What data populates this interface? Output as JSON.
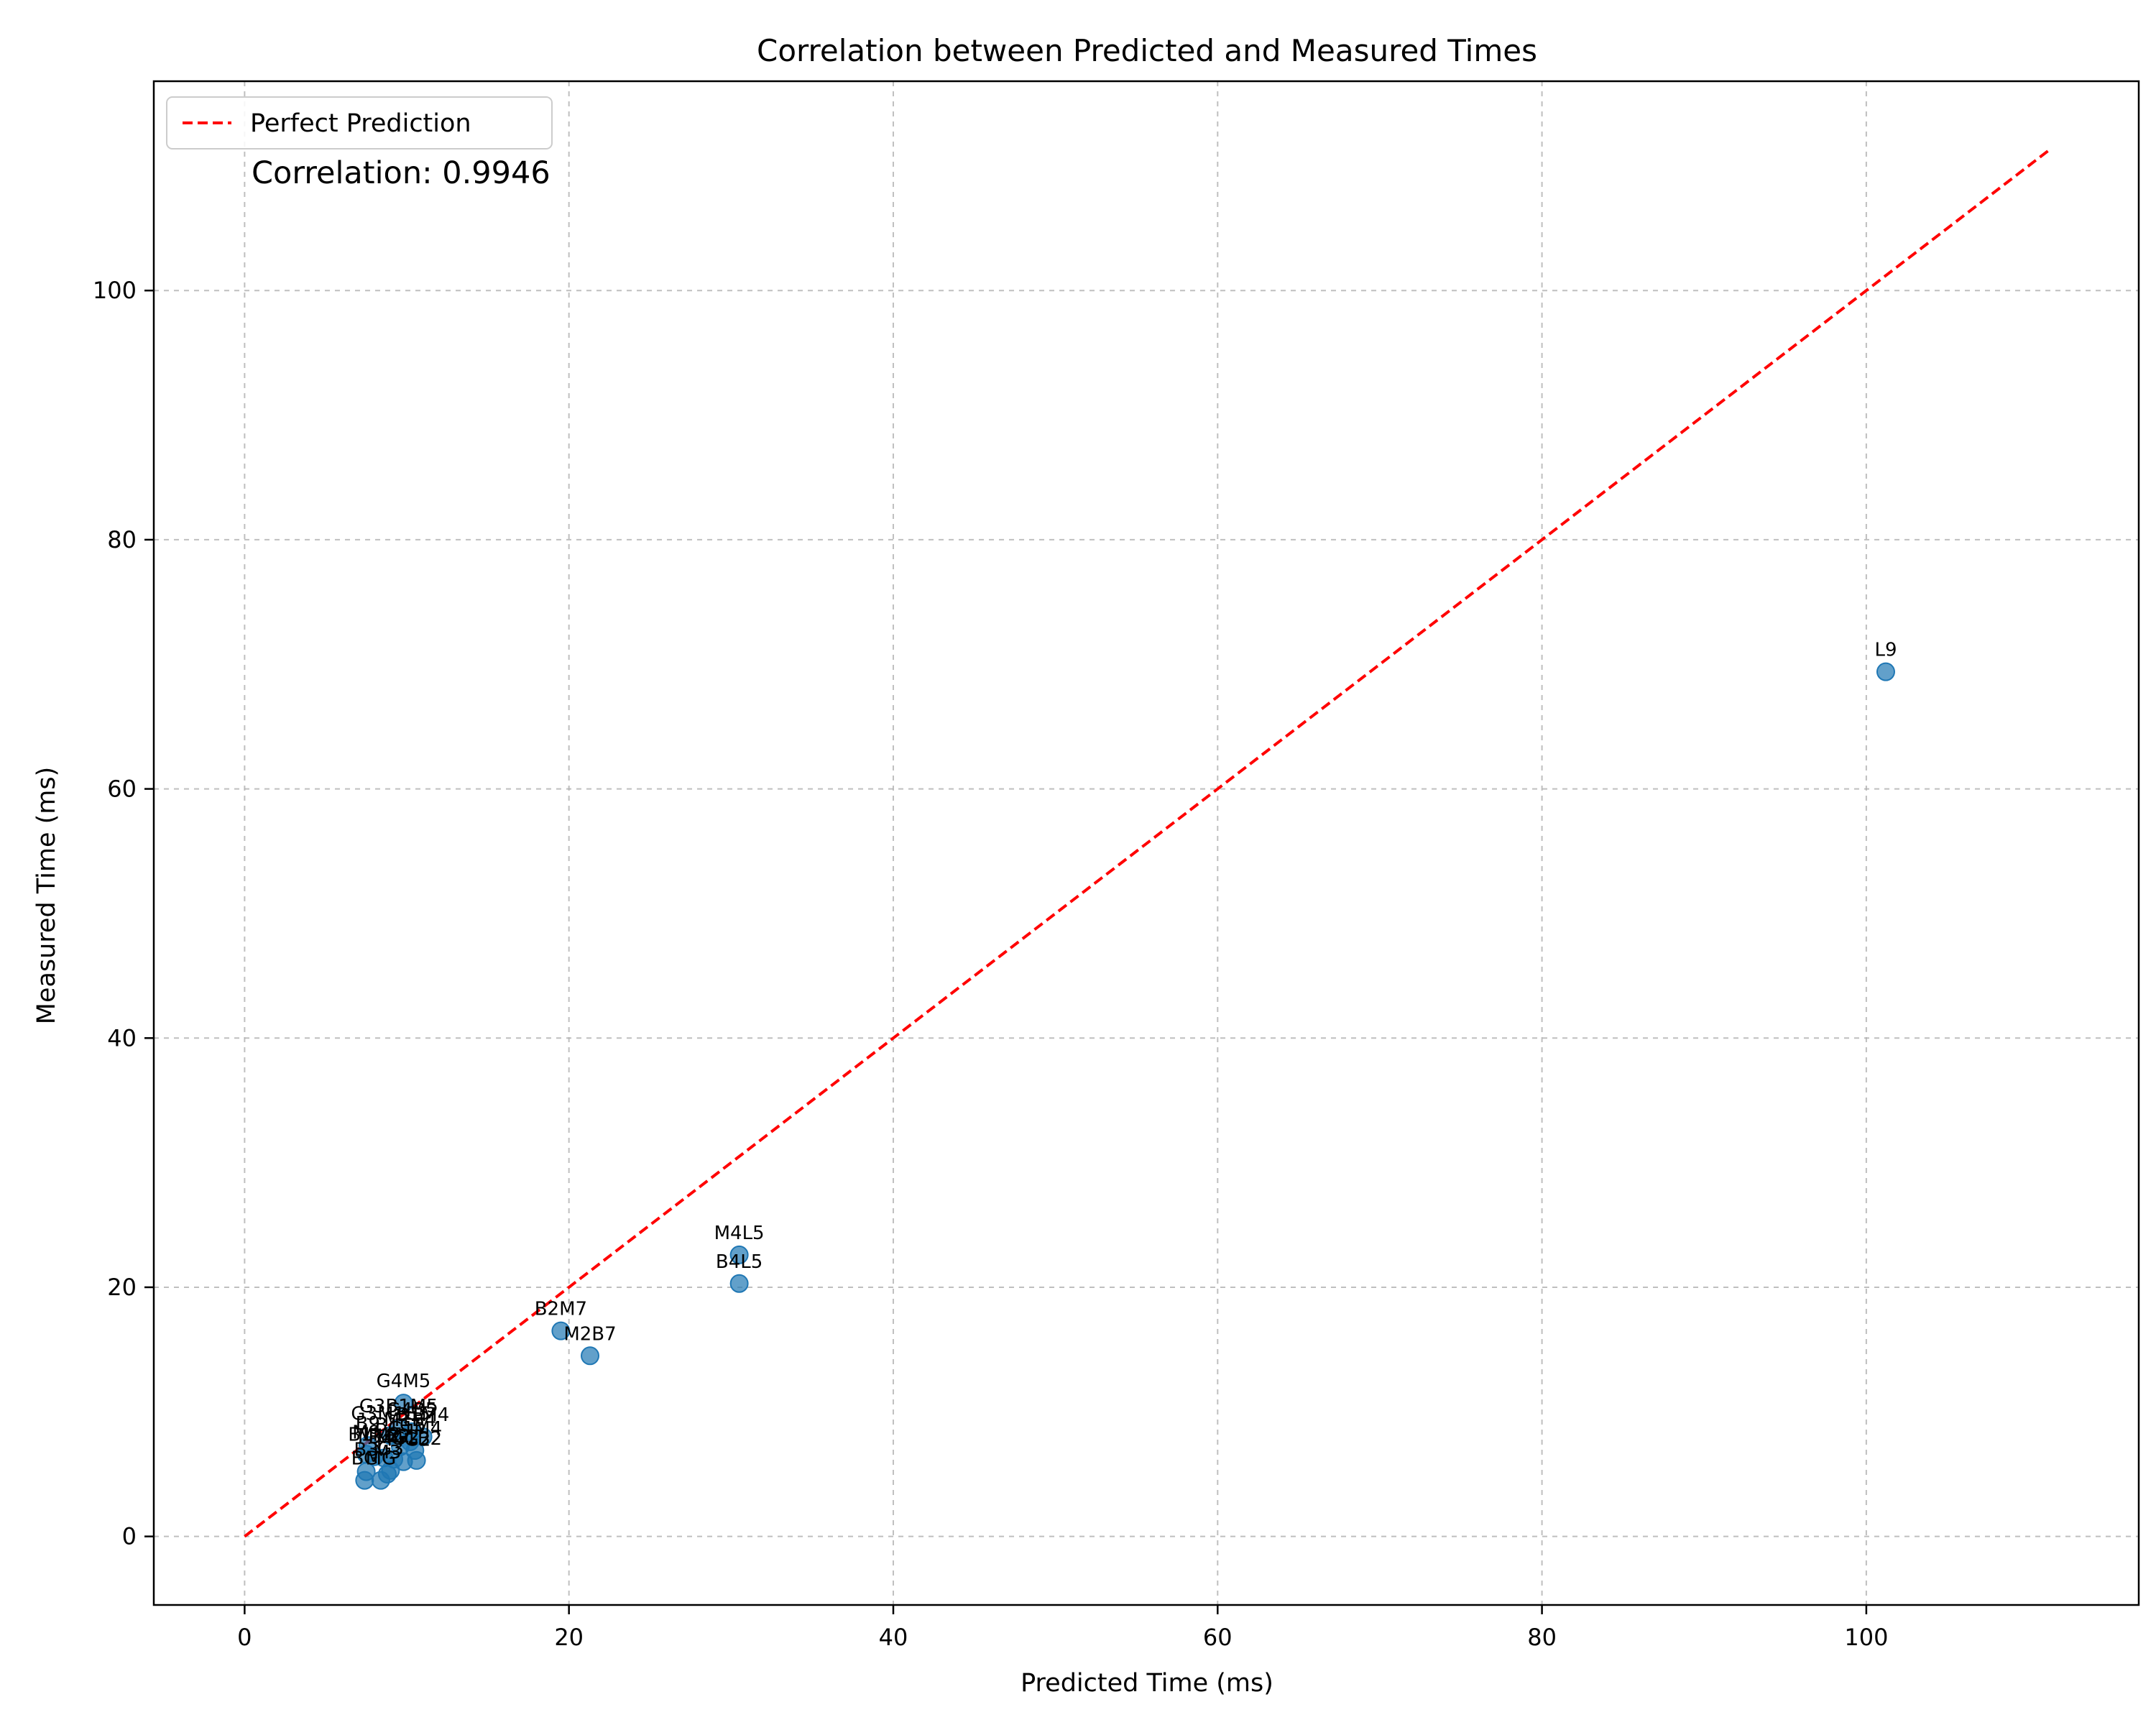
{
  "chart_data": {
    "type": "scatter",
    "title": "Correlation between Predicted and Measured Times",
    "xlabel": "Predicted Time (ms)",
    "ylabel": "Measured Time (ms)",
    "xlim": [
      -5.6,
      116.8
    ],
    "ylim": [
      -5.5,
      116.8
    ],
    "xticks": [
      0,
      20,
      40,
      60,
      80,
      100
    ],
    "yticks": [
      0,
      20,
      40,
      60,
      80,
      100
    ],
    "grid": true,
    "legend": {
      "placement": "top-left",
      "entries": [
        "Perfect Prediction"
      ]
    },
    "annotation": "Correlation: 0.9946",
    "point_color": "#1f77b4",
    "line_color": "#ff0000",
    "reference_line": {
      "name": "Perfect Prediction",
      "x": [
        0,
        111.3
      ],
      "y": [
        0,
        111.3
      ]
    },
    "points": [
      {
        "label": "L9",
        "x": 101.2,
        "y": 69.4
      },
      {
        "label": "M4L5",
        "x": 30.5,
        "y": 22.6
      },
      {
        "label": "B4L5",
        "x": 30.5,
        "y": 20.3
      },
      {
        "label": "B2M7",
        "x": 19.5,
        "y": 16.5
      },
      {
        "label": "M2B7",
        "x": 21.3,
        "y": 14.5
      },
      {
        "label": "G4M5",
        "x": 9.8,
        "y": 10.7
      },
      {
        "label": "G3B1M5",
        "x": 9.5,
        "y": 8.7
      },
      {
        "label": "G3M1B5",
        "x": 9.0,
        "y": 8.1
      },
      {
        "label": "G4B5",
        "x": 10.3,
        "y": 8.4
      },
      {
        "label": "B1M4",
        "x": 11.0,
        "y": 8.0
      },
      {
        "label": "M1B4",
        "x": 10.2,
        "y": 7.6
      },
      {
        "label": "B1G5",
        "x": 9.6,
        "y": 7.2
      },
      {
        "label": "G1M4",
        "x": 10.5,
        "y": 6.9
      },
      {
        "label": "B9",
        "x": 7.6,
        "y": 7.3
      },
      {
        "label": "M9",
        "x": 7.5,
        "y": 6.6
      },
      {
        "label": "B1M2",
        "x": 8.0,
        "y": 6.4
      },
      {
        "label": "M1B2",
        "x": 8.6,
        "y": 6.3
      },
      {
        "label": "B4G2",
        "x": 9.2,
        "y": 6.2
      },
      {
        "label": "M4G2",
        "x": 9.8,
        "y": 6.0
      },
      {
        "label": "G1B2",
        "x": 10.6,
        "y": 6.1
      },
      {
        "label": "BG",
        "x": 7.4,
        "y": 4.5
      },
      {
        "label": "MG",
        "x": 8.4,
        "y": 4.5
      },
      {
        "label": "B3",
        "x": 7.5,
        "y": 5.2
      },
      {
        "label": "M3",
        "x": 8.8,
        "y": 5.0
      },
      {
        "label": "G3",
        "x": 9.0,
        "y": 5.3
      }
    ]
  }
}
